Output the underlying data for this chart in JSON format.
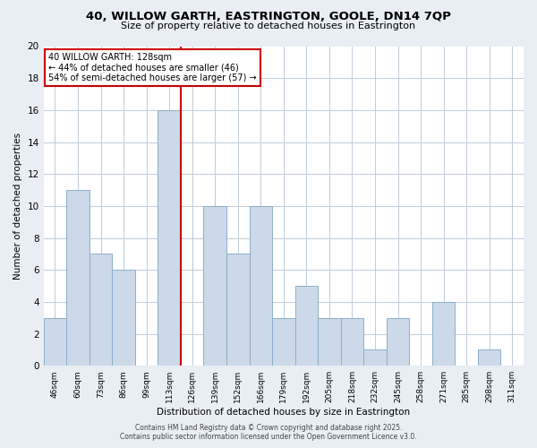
{
  "title": "40, WILLOW GARTH, EASTRINGTON, GOOLE, DN14 7QP",
  "subtitle": "Size of property relative to detached houses in Eastrington",
  "xlabel": "Distribution of detached houses by size in Eastrington",
  "ylabel": "Number of detached properties",
  "bar_labels": [
    "46sqm",
    "60sqm",
    "73sqm",
    "86sqm",
    "99sqm",
    "113sqm",
    "126sqm",
    "139sqm",
    "152sqm",
    "166sqm",
    "179sqm",
    "192sqm",
    "205sqm",
    "218sqm",
    "232sqm",
    "245sqm",
    "258sqm",
    "271sqm",
    "285sqm",
    "298sqm",
    "311sqm"
  ],
  "bar_values": [
    3,
    11,
    7,
    6,
    0,
    16,
    0,
    10,
    7,
    10,
    3,
    5,
    3,
    3,
    1,
    3,
    0,
    4,
    0,
    1,
    0
  ],
  "bar_color": "#ccd9e8",
  "bar_edgecolor": "#8ab0cc",
  "vline_color": "#cc0000",
  "ylim": [
    0,
    20
  ],
  "yticks": [
    0,
    2,
    4,
    6,
    8,
    10,
    12,
    14,
    16,
    18,
    20
  ],
  "annotation_title": "40 WILLOW GARTH: 128sqm",
  "annotation_line1": "← 44% of detached houses are smaller (46)",
  "annotation_line2": "54% of semi-detached houses are larger (57) →",
  "annotation_box_color": "#ffffff",
  "annotation_box_edgecolor": "#cc0000",
  "footer_line1": "Contains HM Land Registry data © Crown copyright and database right 2025.",
  "footer_line2": "Contains public sector information licensed under the Open Government Licence v3.0.",
  "bg_color": "#e8eef4",
  "plot_bg_color": "#ffffff",
  "grid_color": "#c0ccda"
}
